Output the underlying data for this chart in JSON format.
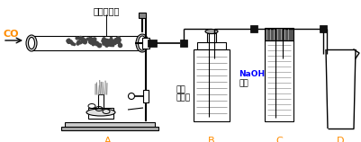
{
  "bg_color": "#ffffff",
  "line_color": "#000000",
  "co_label": "CO",
  "oxide_label": "氧化铁粉末",
  "clear_lime_1": "澄清",
  "clear_lime_2": "石灰水",
  "naoh_line1": "NaOH",
  "naoh_line2": "溶液",
  "label_A": "A",
  "label_B": "B",
  "label_C": "C",
  "label_D": "D",
  "naoh_color": "#0000ff",
  "orange_color": "#ff8c00",
  "fig_width": 4.01,
  "fig_height": 1.58,
  "dpi": 100
}
